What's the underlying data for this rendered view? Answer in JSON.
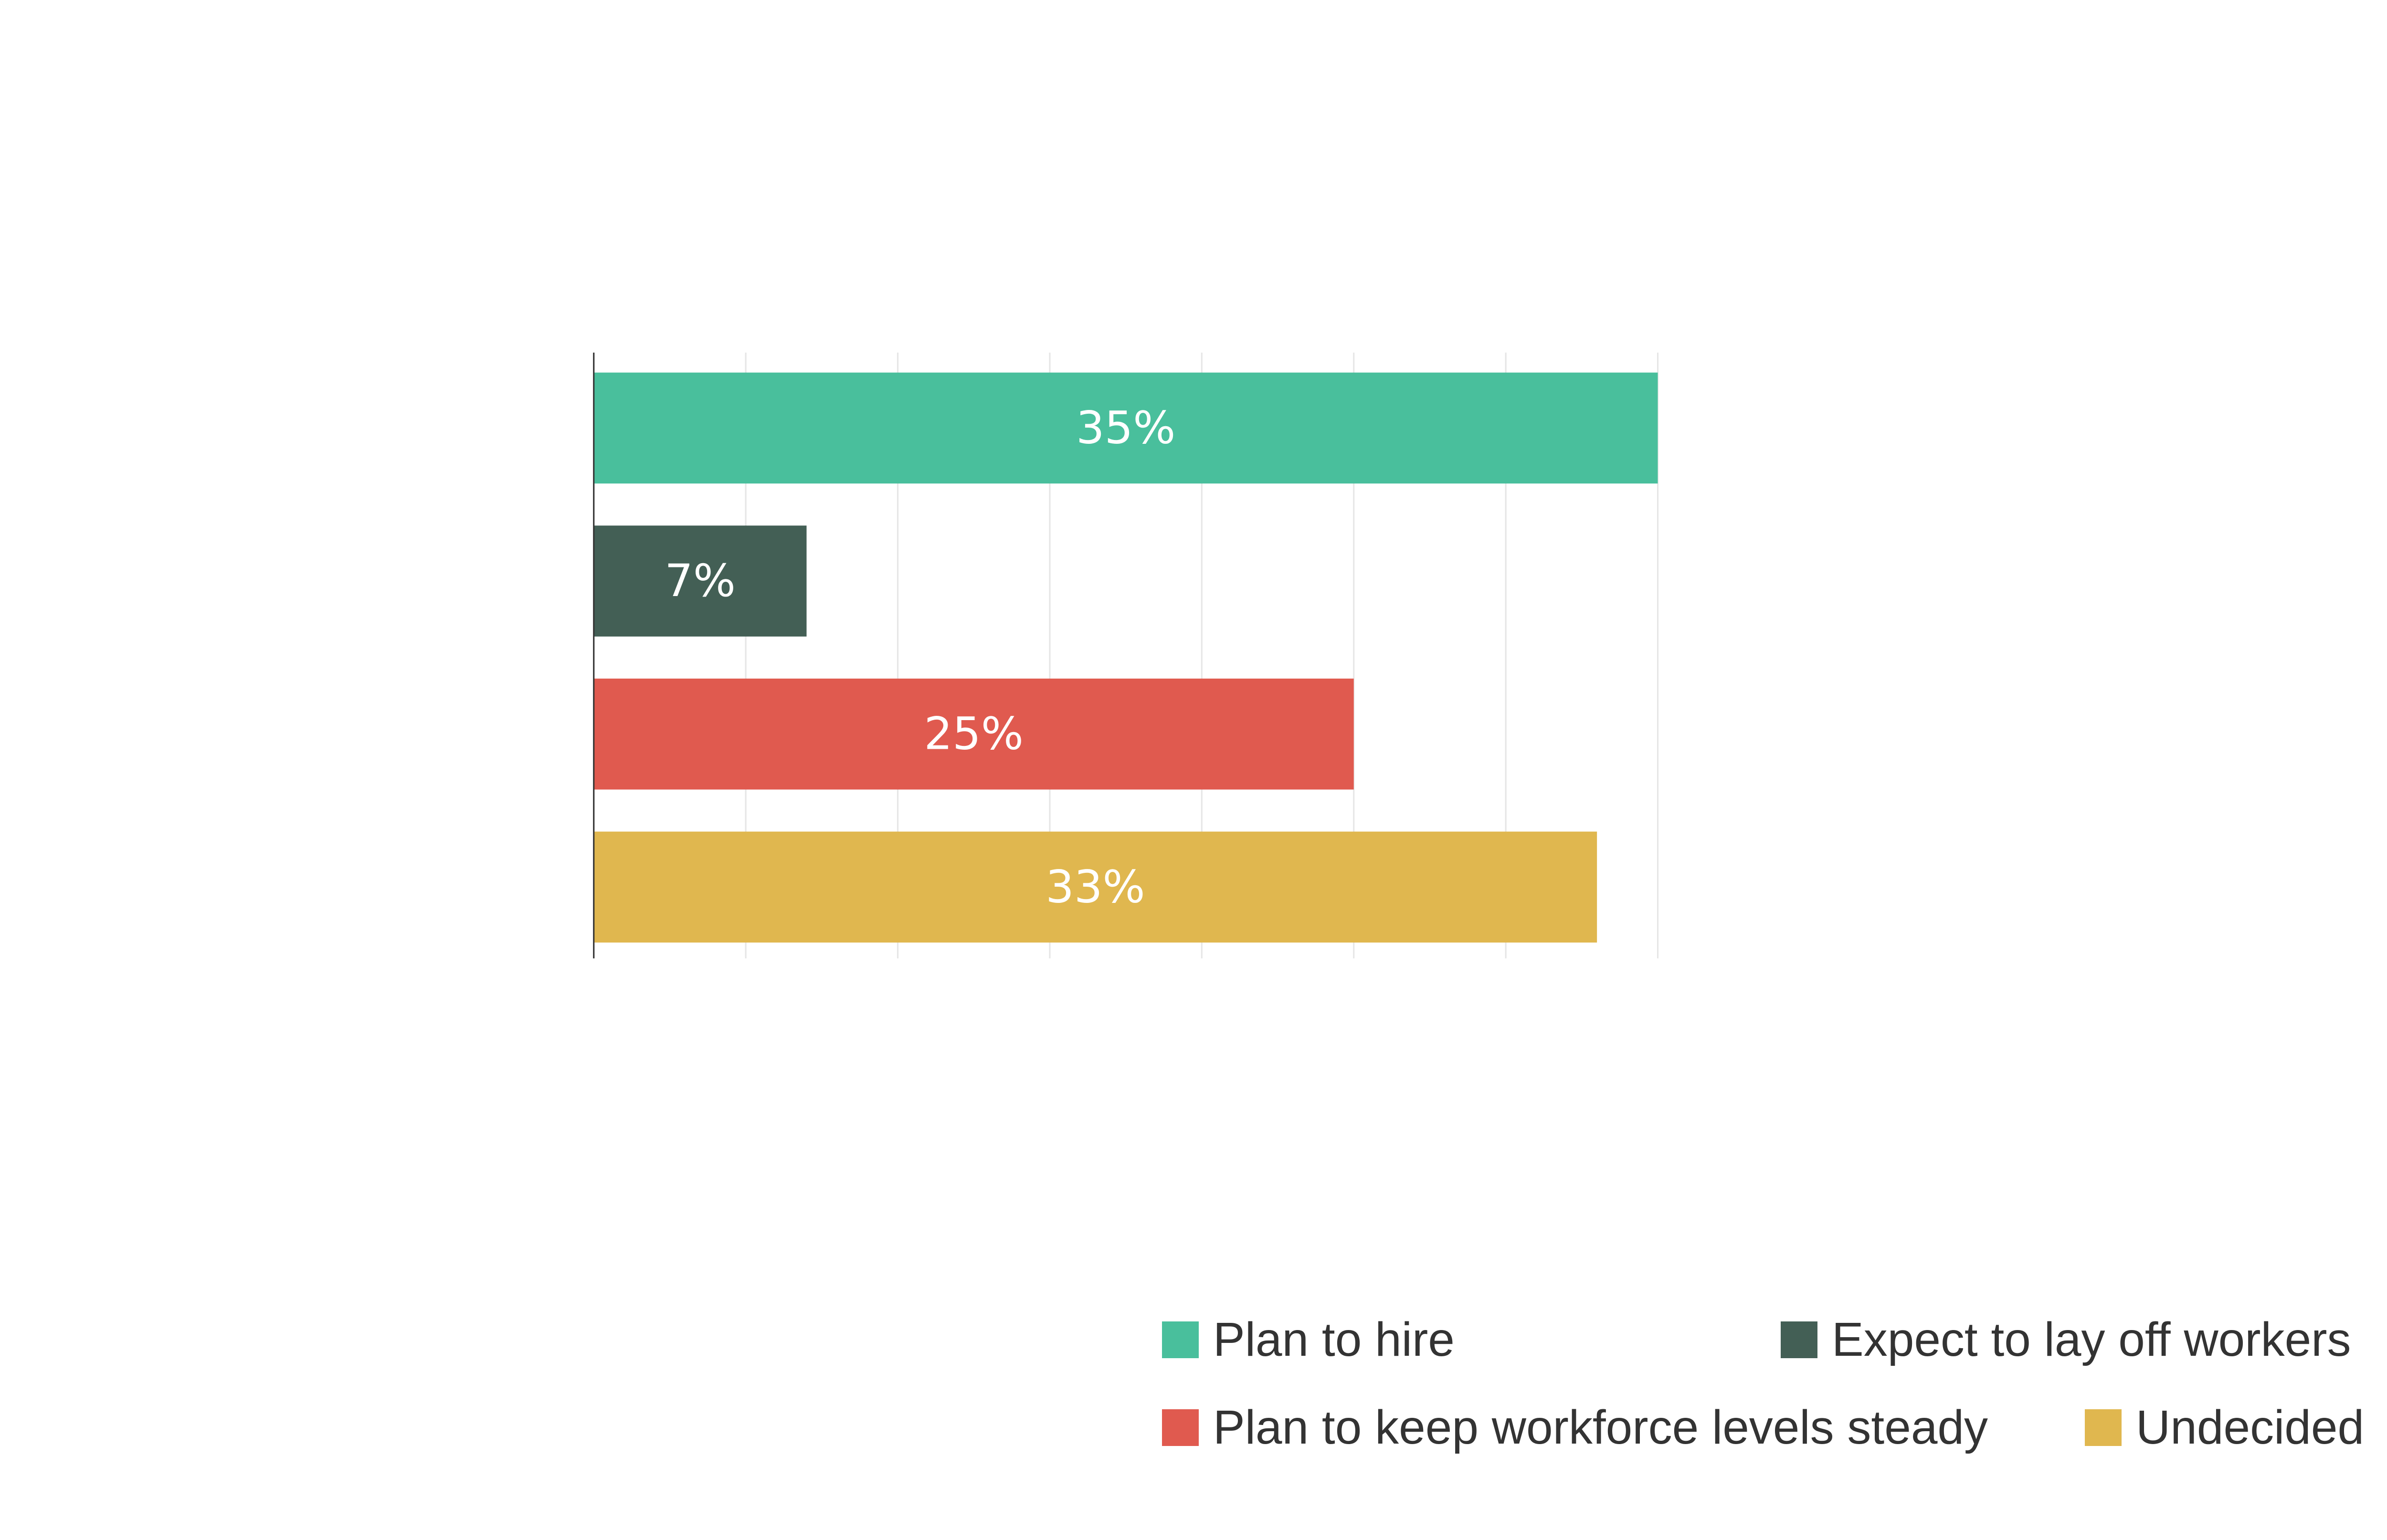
{
  "chart_data": {
    "type": "bar",
    "orientation": "horizontal",
    "title": "",
    "xlabel": "",
    "ylabel": "",
    "xlim": [
      0,
      35
    ],
    "grid": true,
    "grid_step": 5,
    "legend_placement": "bottom",
    "categories": [
      "Plan to hire",
      "Expect to lay off workers",
      "Plan to keep workforce levels steady",
      "Undecided"
    ],
    "values": [
      35,
      7,
      25,
      33
    ],
    "data_labels": [
      "35%",
      "7%",
      "25%",
      "33%"
    ],
    "colors": [
      "#49bf9c",
      "#435f55",
      "#e05a4f",
      "#e0b74f"
    ],
    "legend": [
      {
        "label": "Plan to hire",
        "color": "#49bf9c"
      },
      {
        "label": "Expect to lay off workers",
        "color": "#435f55"
      },
      {
        "label": "Plan to keep workforce levels steady",
        "color": "#e05a4f"
      },
      {
        "label": "Undecided",
        "color": "#e0b74f"
      }
    ]
  }
}
